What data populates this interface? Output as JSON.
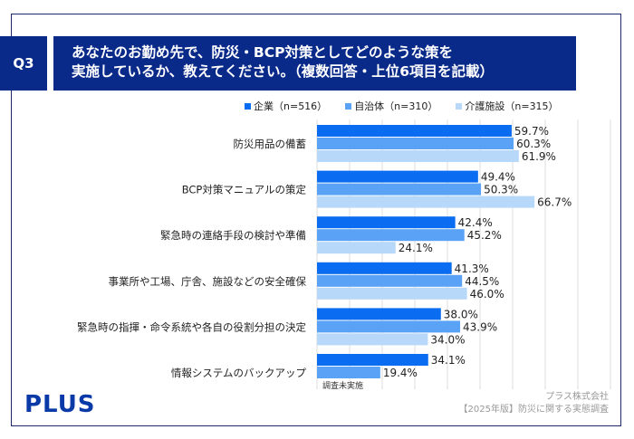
{
  "question_label": "Q3",
  "title": "あなたのお勤め先で、防災・BCP対策としてどのような策を\n実施しているか、教えてください。（複数回答・上位6項目を記載）",
  "logo": "PLUS",
  "footer": {
    "company": "プラス株式会社",
    "survey": "【2025年版】防災に関する実態調査"
  },
  "chart_data": {
    "type": "bar",
    "orientation": "horizontal",
    "grid": true,
    "legend": "top-right",
    "xlim": [
      0,
      90
    ],
    "categories": [
      "防災用品の備蓄",
      "BCP対策マニュアルの策定",
      "緊急時の連絡手段の検討や準備",
      "事業所や工場、庁舎、施設などの安全確保",
      "緊急時の指揮・命令系統や各自の役割分担の決定",
      "情報システムのバックアップ"
    ],
    "series": [
      {
        "name": "企業（n=516）",
        "color": "#0a6cf0",
        "values": [
          59.7,
          49.4,
          42.4,
          41.3,
          38.0,
          34.1
        ]
      },
      {
        "name": "自治体（n=310）",
        "color": "#5aa2f5",
        "values": [
          60.3,
          50.3,
          45.2,
          44.5,
          43.9,
          19.4
        ]
      },
      {
        "name": "介護施設（n=315）",
        "color": "#b8d8fa",
        "values": [
          61.9,
          66.7,
          24.1,
          46.0,
          34.0,
          null
        ]
      }
    ],
    "annotations": [
      "調査未実施"
    ]
  }
}
